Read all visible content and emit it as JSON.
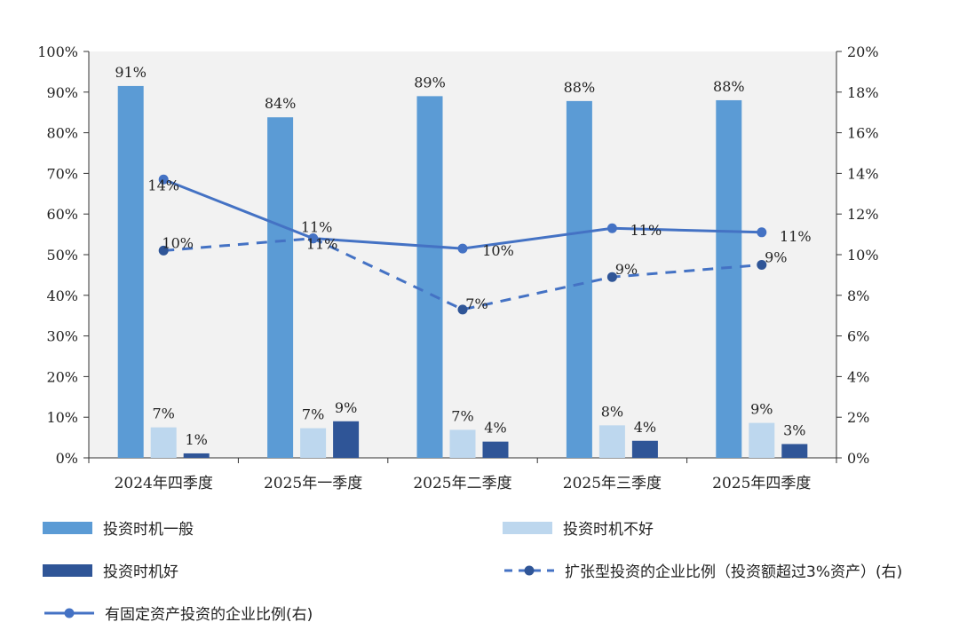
{
  "chart_data": {
    "type": "bar+line",
    "categories": [
      "2024年四季度",
      "2025年一季度",
      "2025年二季度",
      "2025年三季度",
      "2025年四季度"
    ],
    "left_axis": {
      "ylim": [
        0,
        100
      ],
      "ticks": [
        0,
        10,
        20,
        30,
        40,
        50,
        60,
        70,
        80,
        90,
        100
      ],
      "tick_labels": [
        "0%",
        "10%",
        "20%",
        "30%",
        "40%",
        "50%",
        "60%",
        "70%",
        "80%",
        "90%",
        "100%"
      ]
    },
    "right_axis": {
      "ylim": [
        0,
        20
      ],
      "ticks": [
        0,
        2,
        4,
        6,
        8,
        10,
        12,
        14,
        16,
        18,
        20
      ],
      "tick_labels": [
        "0%",
        "2%",
        "4%",
        "6%",
        "8%",
        "10%",
        "12%",
        "14%",
        "16%",
        "18%",
        "20%"
      ]
    },
    "bar_series": [
      {
        "name": "投资时机一般",
        "color": "#5b9bd5",
        "values": [
          91.5,
          83.8,
          89.0,
          87.8,
          88.0
        ],
        "labels": [
          "91%",
          "84%",
          "89%",
          "88%",
          "88%"
        ]
      },
      {
        "name": "投资时机不好",
        "color": "#bdd7ee",
        "values": [
          7.5,
          7.3,
          6.9,
          8.0,
          8.6
        ],
        "labels": [
          "7%",
          "7%",
          "7%",
          "8%",
          "9%"
        ]
      },
      {
        "name": "投资时机好",
        "color": "#2f5597",
        "values": [
          1.1,
          9.0,
          4.0,
          4.2,
          3.4
        ],
        "labels": [
          "1%",
          "9%",
          "4%",
          "4%",
          "3%"
        ]
      }
    ],
    "line_series": [
      {
        "name": "扩张型投资的企业比例（投资额超过3%资产）(右)",
        "axis": "right",
        "style": "dashed",
        "color": "#4472c4",
        "values": [
          10.2,
          10.8,
          7.3,
          8.9,
          9.5
        ],
        "labels": [
          "10%",
          "11%",
          "7%",
          "9%",
          "9%"
        ]
      },
      {
        "name": "有固定资产投资的企业比例(右)",
        "axis": "right",
        "style": "solid",
        "color": "#4472c4",
        "values": [
          13.7,
          10.8,
          10.3,
          11.3,
          11.1
        ],
        "labels": [
          "14%",
          "11%",
          "10%",
          "11%",
          "11%"
        ]
      }
    ],
    "grid": false,
    "legend_position": "bottom"
  },
  "legend": {
    "bar_general": "投资时机一般",
    "bar_bad": "投资时机不好",
    "bar_good": "投资时机好",
    "line_expansion": "扩张型投资的企业比例（投资额超过3%资产）(右)",
    "line_fixed": "有固定资产投资的企业比例(右)"
  },
  "colors": {
    "plot_bg": "#f2f2f2",
    "axis": "#333333",
    "text": "#222222"
  }
}
